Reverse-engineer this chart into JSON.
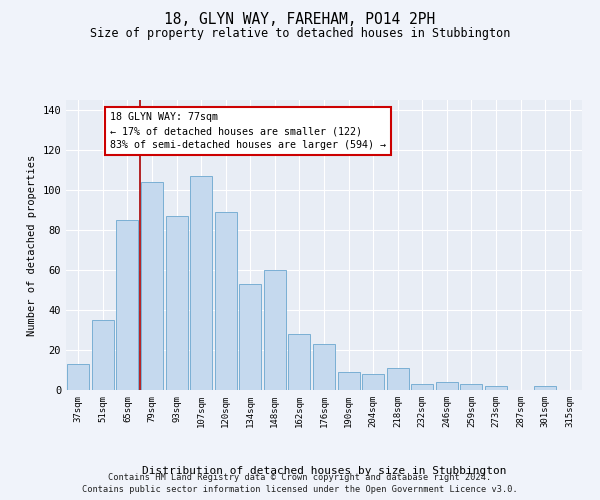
{
  "title": "18, GLYN WAY, FAREHAM, PO14 2PH",
  "subtitle": "Size of property relative to detached houses in Stubbington",
  "xlabel": "Distribution of detached houses by size in Stubbington",
  "ylabel": "Number of detached properties",
  "bar_color": "#c5d9ee",
  "bar_edge_color": "#7aafd4",
  "background_color": "#e8edf5",
  "grid_color": "#ffffff",
  "annotation_line_color": "#aa0000",
  "annotation_box_color": "#ffffff",
  "annotation_box_edge": "#cc0000",
  "annotation_line1": "18 GLYN WAY: 77sqm",
  "annotation_line2": "← 17% of detached houses are smaller (122)",
  "annotation_line3": "83% of semi-detached houses are larger (594) →",
  "categories": [
    "37sqm",
    "51sqm",
    "65sqm",
    "79sqm",
    "93sqm",
    "107sqm",
    "120sqm",
    "134sqm",
    "148sqm",
    "162sqm",
    "176sqm",
    "190sqm",
    "204sqm",
    "218sqm",
    "232sqm",
    "246sqm",
    "259sqm",
    "273sqm",
    "287sqm",
    "301sqm",
    "315sqm"
  ],
  "values": [
    13,
    35,
    85,
    104,
    87,
    107,
    89,
    53,
    60,
    28,
    23,
    9,
    8,
    11,
    3,
    4,
    3,
    2,
    0,
    2,
    0
  ],
  "ylim": [
    0,
    145
  ],
  "yticks": [
    0,
    20,
    40,
    60,
    80,
    100,
    120,
    140
  ],
  "footnote1": "Contains HM Land Registry data © Crown copyright and database right 2024.",
  "footnote2": "Contains public sector information licensed under the Open Government Licence v3.0.",
  "bar_width": 0.9,
  "fig_bg": "#f0f3fa"
}
